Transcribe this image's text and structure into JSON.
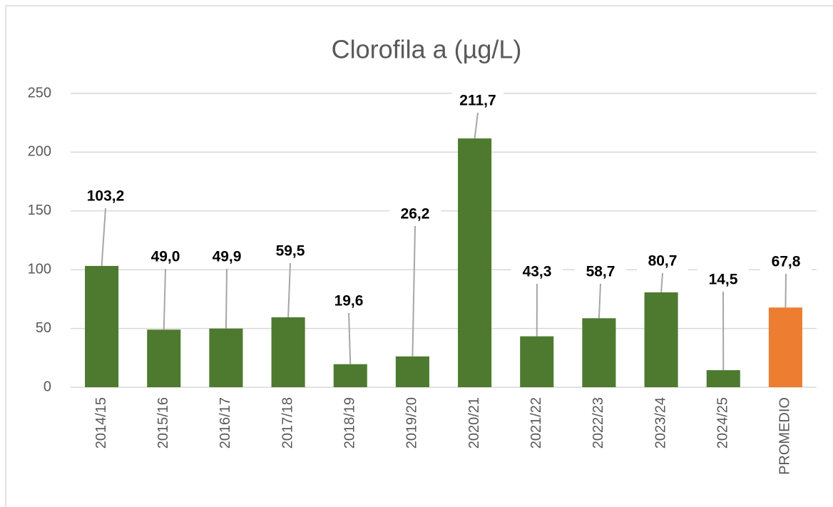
{
  "chart_data": {
    "type": "bar",
    "title": "Clorofila a (µg/L)",
    "categories": [
      "2014/15",
      "2015/16",
      "2016/17",
      "2017/18",
      "2018/19",
      "2019/20",
      "2020/21",
      "2021/22",
      "2022/23",
      "2023/24",
      "2024/25",
      "PROMEDIO"
    ],
    "values": [
      103.2,
      49.0,
      49.9,
      59.5,
      19.6,
      26.2,
      211.7,
      43.3,
      58.7,
      80.7,
      14.5,
      67.8
    ],
    "value_labels": [
      "103,2",
      "49,0",
      "49,9",
      "59,5",
      "19,6",
      "26,2",
      "211,7",
      "43,3",
      "58,7",
      "80,7",
      "14,5",
      "67,8"
    ],
    "colors": [
      "#4e7a30",
      "#4e7a30",
      "#4e7a30",
      "#4e7a30",
      "#4e7a30",
      "#4e7a30",
      "#4e7a30",
      "#4e7a30",
      "#4e7a30",
      "#4e7a30",
      "#4e7a30",
      "#ed7d31"
    ],
    "ylim": [
      0,
      250
    ],
    "yticks": [
      0,
      50,
      100,
      150,
      200,
      250
    ],
    "grid": true
  }
}
